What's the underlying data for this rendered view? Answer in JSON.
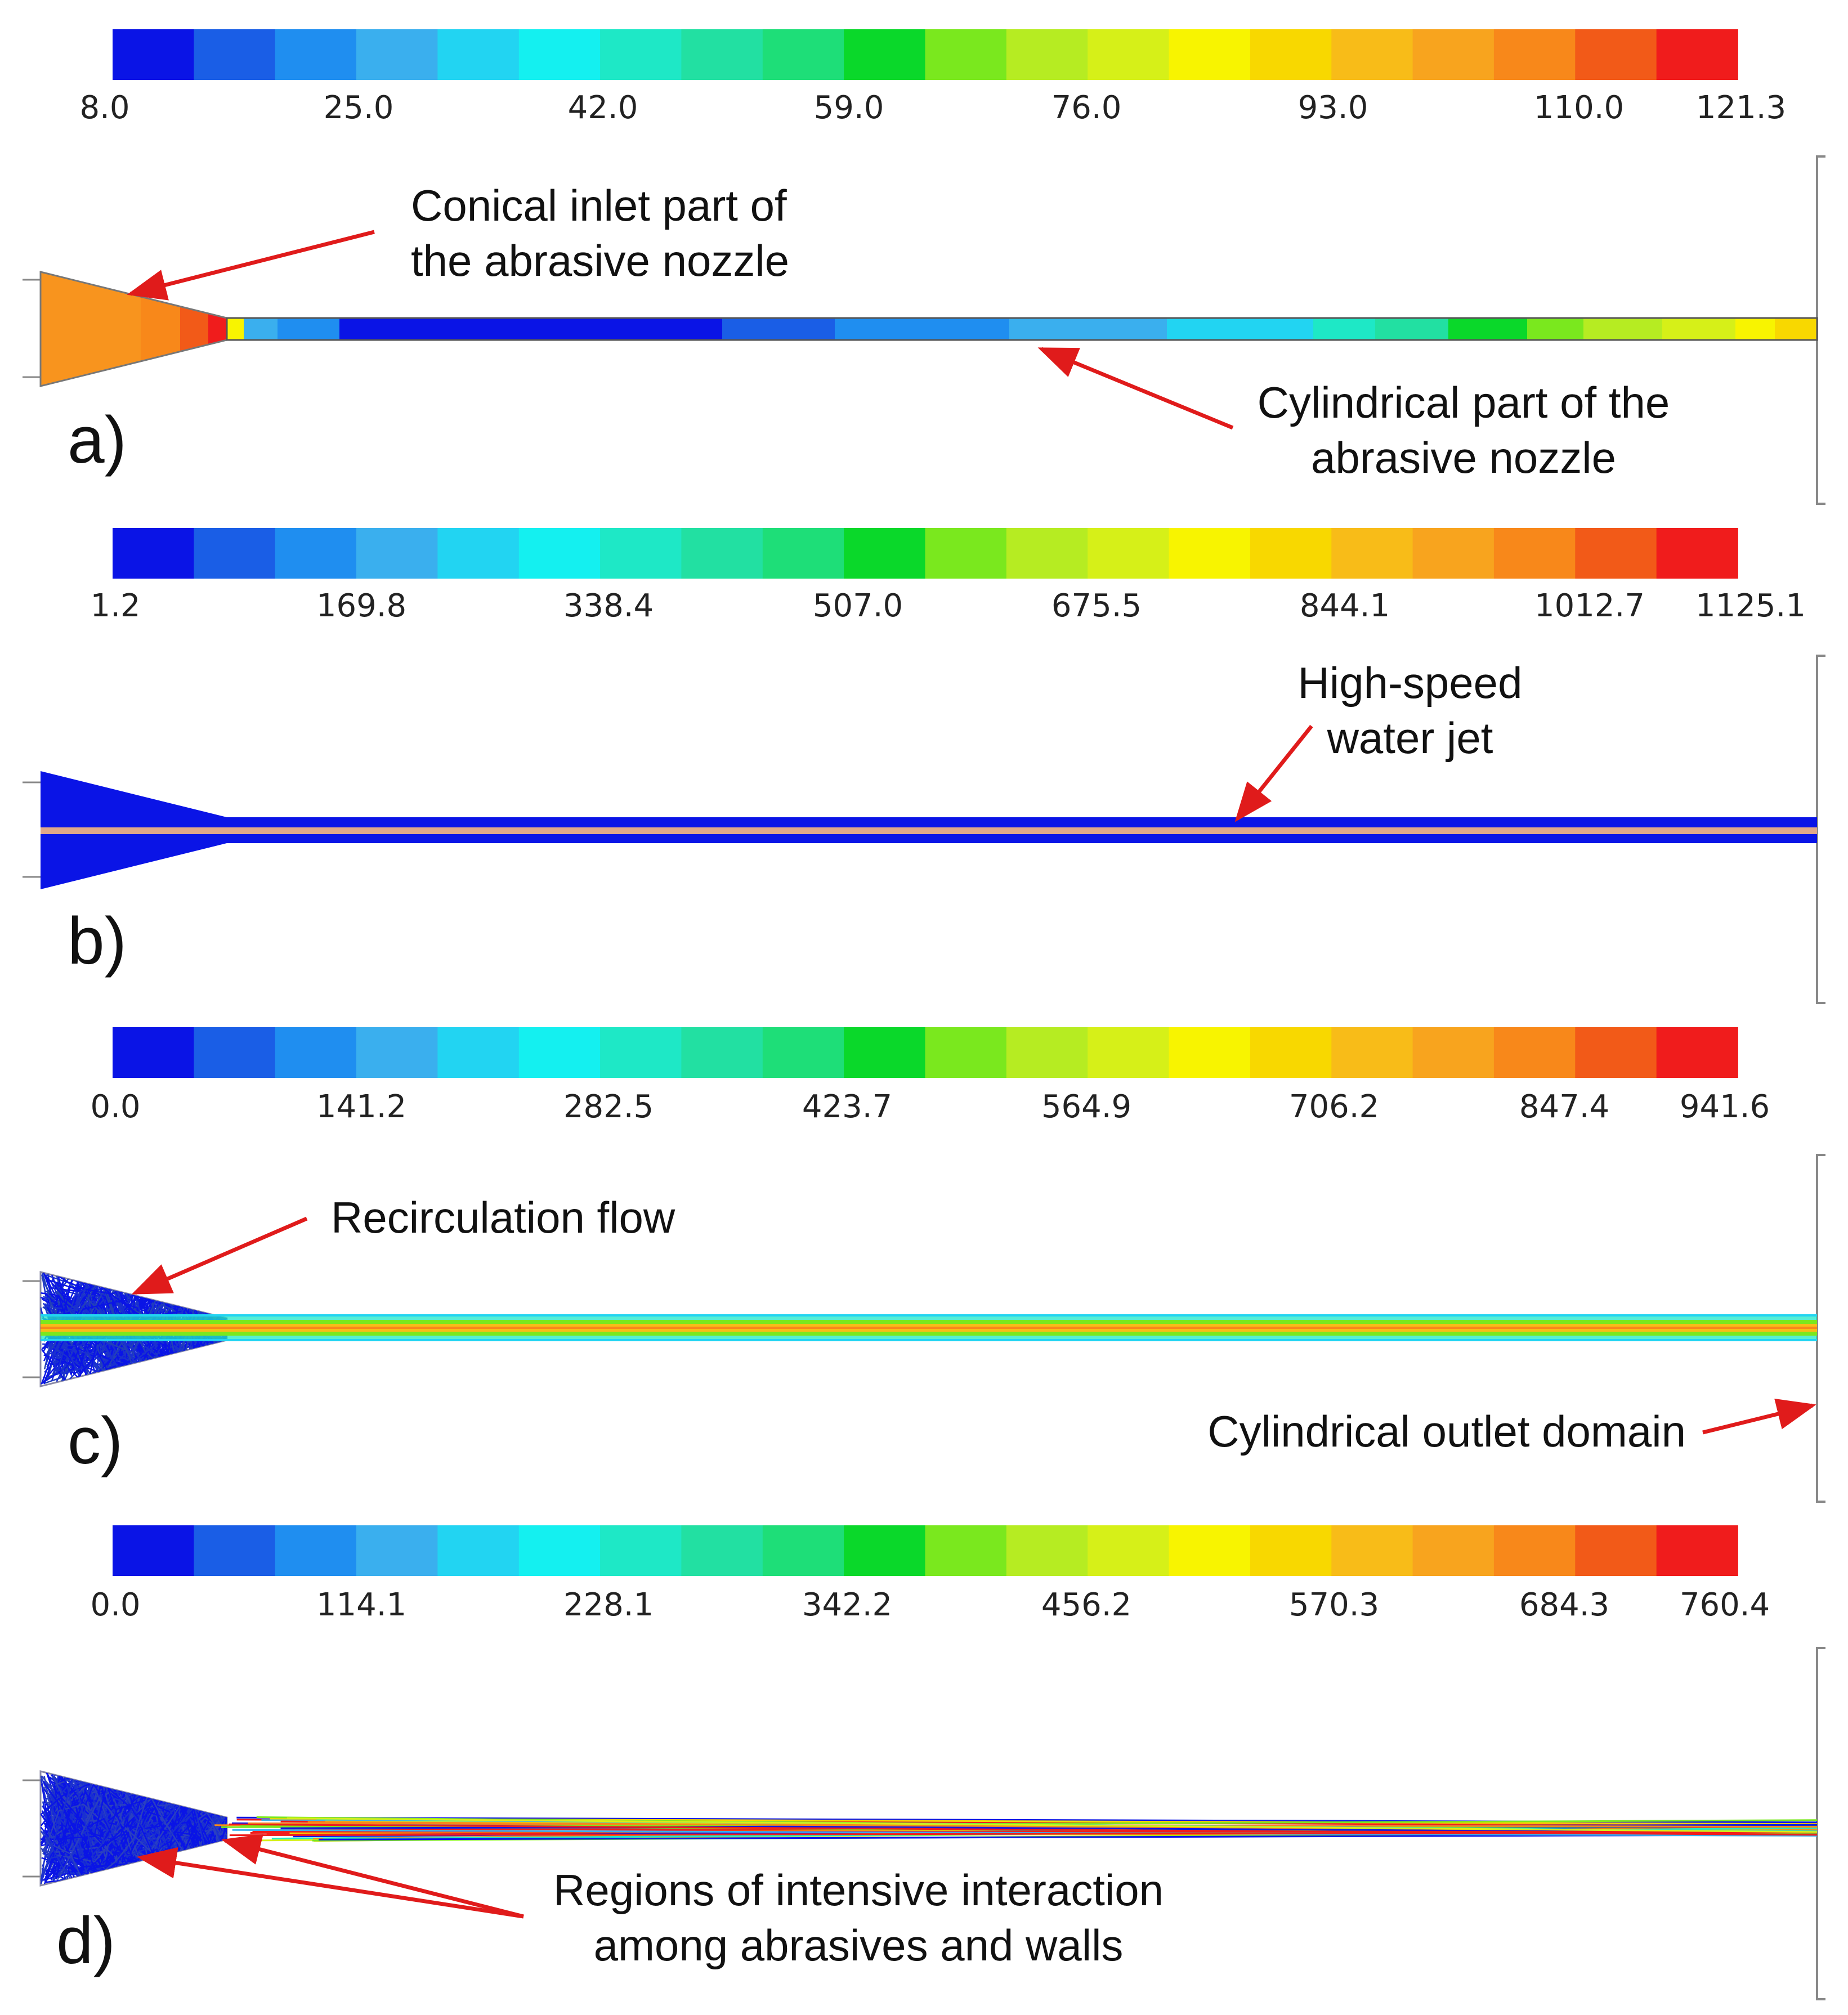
{
  "colormap": [
    "#0a14e6",
    "#1a5ee6",
    "#1f8ef0",
    "#3aafee",
    "#22d4f2",
    "#14f0f0",
    "#1ee8c6",
    "#22e0a2",
    "#1ede78",
    "#0ad82a",
    "#7ae81e",
    "#b6ec22",
    "#d6f018",
    "#f8f400",
    "#f8d800",
    "#f8bc18",
    "#f8a41e",
    "#f8881a",
    "#f25a18",
    "#f01c1c"
  ],
  "panels": [
    {
      "label": "a)",
      "ticks": [
        "8.0",
        "25.0",
        "42.0",
        "59.0",
        "76.0",
        "93.0",
        "110.0",
        "121.3"
      ],
      "annotations": [
        {
          "id": "conical-inlet",
          "lines": [
            "Conical inlet part of",
            "the abrasive nozzle"
          ]
        },
        {
          "id": "cylindrical-part",
          "lines": [
            "Cylindrical part of the",
            "abrasive nozzle"
          ]
        }
      ]
    },
    {
      "label": "b)",
      "ticks": [
        "1.2",
        "169.8",
        "338.4",
        "507.0",
        "675.5",
        "844.1",
        "1012.7",
        "1125.1"
      ],
      "annotations": [
        {
          "id": "high-speed-jet",
          "lines": [
            "High-speed",
            "water jet"
          ]
        }
      ]
    },
    {
      "label": "c)",
      "ticks": [
        "0.0",
        "141.2",
        "282.5",
        "423.7",
        "564.9",
        "706.2",
        "847.4",
        "941.6"
      ],
      "annotations": [
        {
          "id": "recirculation",
          "lines": [
            "Recirculation flow"
          ]
        },
        {
          "id": "outlet-domain",
          "lines": [
            "Cylindrical outlet domain"
          ]
        }
      ]
    },
    {
      "label": "d)",
      "ticks": [
        "0.0",
        "114.1",
        "228.1",
        "342.2",
        "456.2",
        "570.3",
        "684.3",
        "760.4"
      ],
      "annotations": [
        {
          "id": "interaction",
          "lines": [
            "Regions of intensive interaction",
            "among abrasives and walls"
          ]
        }
      ]
    }
  ]
}
